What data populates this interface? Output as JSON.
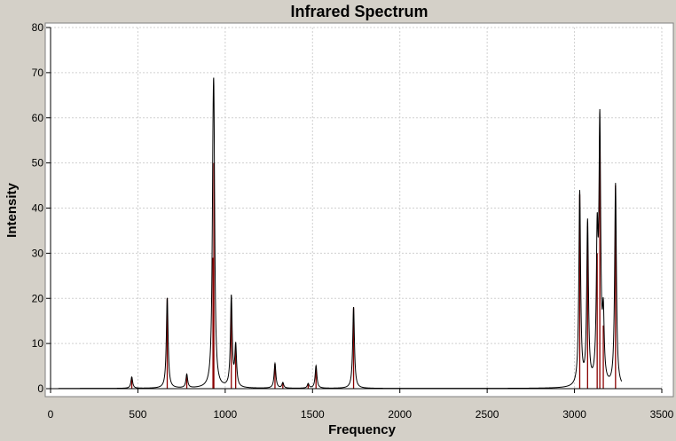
{
  "chart_data": {
    "type": "line",
    "title": "Infrared Spectrum",
    "xlabel": "Frequency",
    "ylabel": "Intensity",
    "xlim": [
      0,
      3500
    ],
    "ylim": [
      0,
      80
    ],
    "xticks": [
      0,
      500,
      1000,
      1500,
      2000,
      2500,
      3000,
      3500
    ],
    "yticks": [
      0,
      10,
      20,
      30,
      40,
      50,
      60,
      70,
      80
    ],
    "grid": true,
    "curve_range": [
      45,
      3270
    ],
    "curve_color": "#000000",
    "stick_color": "#8b0000",
    "background_color": "#ffffff",
    "frame_color": "#d4d0c8",
    "peaks": [
      {
        "x": 465,
        "y": 2.5
      },
      {
        "x": 668,
        "y": 20
      },
      {
        "x": 780,
        "y": 3
      },
      {
        "x": 930,
        "y": 29
      },
      {
        "x": 935,
        "y": 50
      },
      {
        "x": 1035,
        "y": 20
      },
      {
        "x": 1060,
        "y": 9
      },
      {
        "x": 1285,
        "y": 5.5
      },
      {
        "x": 1330,
        "y": 1.2
      },
      {
        "x": 1475,
        "y": 1
      },
      {
        "x": 1520,
        "y": 5
      },
      {
        "x": 1735,
        "y": 18
      },
      {
        "x": 3030,
        "y": 43
      },
      {
        "x": 3075,
        "y": 36
      },
      {
        "x": 3130,
        "y": 30
      },
      {
        "x": 3145,
        "y": 56
      },
      {
        "x": 3165,
        "y": 14
      },
      {
        "x": 3235,
        "y": 45
      }
    ]
  }
}
